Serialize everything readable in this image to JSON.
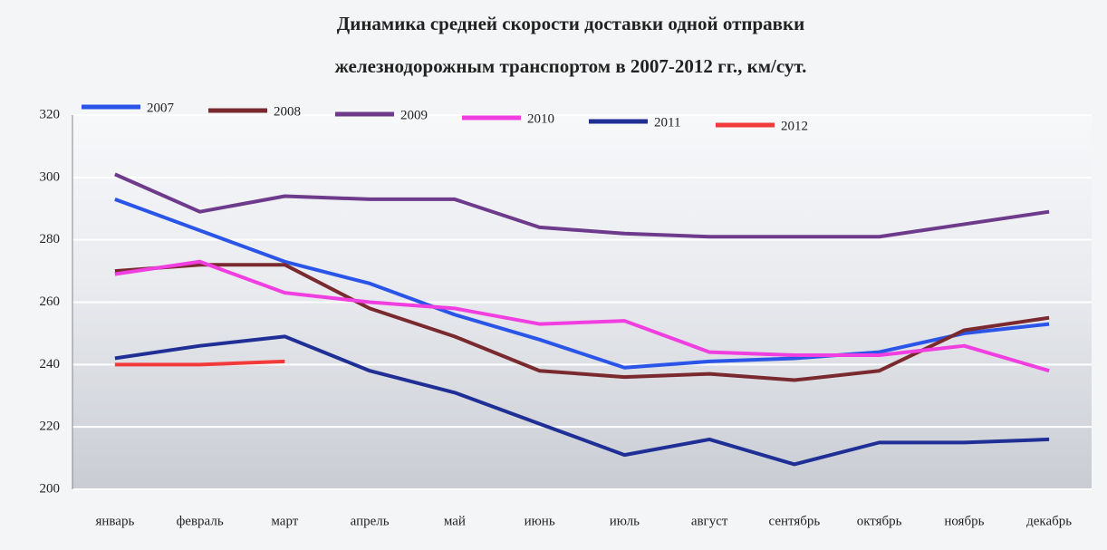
{
  "chart_data": {
    "type": "line",
    "title": [
      "Динамика средней скорости доставки одной отправки",
      "железнодорожным транспортом в 2007-2012 гг., км/сут."
    ],
    "categories": [
      "январь",
      "февраль",
      "март",
      "апрель",
      "май",
      "июнь",
      "июль",
      "август",
      "сентябрь",
      "октябрь",
      "ноябрь",
      "декабрь"
    ],
    "series": [
      {
        "name": "2007",
        "color": "#2a55e8",
        "values": [
          293,
          283,
          273,
          266,
          256,
          248,
          239,
          241,
          242,
          244,
          250,
          253
        ]
      },
      {
        "name": "2008",
        "color": "#7a2a2e",
        "values": [
          270,
          272,
          272,
          258,
          249,
          238,
          236,
          237,
          235,
          238,
          251,
          255
        ]
      },
      {
        "name": "2009",
        "color": "#6e3a8c",
        "values": [
          301,
          289,
          294,
          293,
          293,
          284,
          282,
          281,
          281,
          281,
          285,
          289
        ]
      },
      {
        "name": "2010",
        "color": "#f03ee0",
        "values": [
          269,
          273,
          263,
          260,
          258,
          253,
          254,
          244,
          243,
          243,
          246,
          238
        ]
      },
      {
        "name": "2011",
        "color": "#1f2f96",
        "values": [
          242,
          246,
          249,
          238,
          231,
          221,
          211,
          216,
          208,
          215,
          215,
          216
        ]
      },
      {
        "name": "2012",
        "color": "#f23a3a",
        "values": [
          240,
          240,
          241,
          null,
          null,
          null,
          null,
          null,
          null,
          null,
          null,
          null
        ]
      }
    ],
    "ylim": [
      200,
      320
    ],
    "yticks": [
      200,
      220,
      240,
      260,
      280,
      300,
      320
    ],
    "grid": true
  }
}
